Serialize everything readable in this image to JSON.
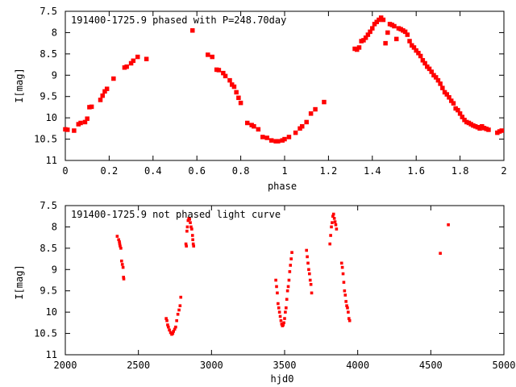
{
  "chart_data": [
    {
      "type": "scatter",
      "title": "191400-1725.9 phased with P=248.70day",
      "xlabel": "phase",
      "ylabel": "I[mag]",
      "xlim": [
        0,
        2
      ],
      "ylim": [
        7.5,
        11
      ],
      "y_inverted": true,
      "grid": false,
      "marker_color": "#ff0000",
      "x_ticks": [
        "0",
        "0.2",
        "0.4",
        "0.6",
        "0.8",
        "1",
        "1.2",
        "1.4",
        "1.6",
        "1.8",
        "2"
      ],
      "y_ticks": [
        "7.5",
        "8",
        "8.5",
        "9",
        "9.5",
        "10",
        "10.5",
        "11"
      ],
      "series": [
        {
          "points": [
            [
              0.0,
              10.27
            ],
            [
              0.01,
              10.28
            ],
            [
              0.04,
              10.3
            ],
            [
              0.06,
              10.15
            ],
            [
              0.07,
              10.12
            ],
            [
              0.09,
              10.1
            ],
            [
              0.1,
              10.02
            ],
            [
              0.11,
              9.75
            ],
            [
              0.12,
              9.74
            ],
            [
              0.16,
              9.58
            ],
            [
              0.17,
              9.48
            ],
            [
              0.18,
              9.38
            ],
            [
              0.19,
              9.32
            ],
            [
              0.22,
              9.08
            ],
            [
              0.27,
              8.82
            ],
            [
              0.28,
              8.8
            ],
            [
              0.3,
              8.72
            ],
            [
              0.31,
              8.66
            ],
            [
              0.33,
              8.57
            ],
            [
              0.37,
              8.62
            ],
            [
              0.58,
              7.95
            ],
            [
              0.65,
              8.52
            ],
            [
              0.67,
              8.57
            ],
            [
              0.69,
              8.87
            ],
            [
              0.7,
              8.88
            ],
            [
              0.72,
              8.95
            ],
            [
              0.73,
              9.02
            ],
            [
              0.75,
              9.12
            ],
            [
              0.76,
              9.22
            ],
            [
              0.77,
              9.27
            ],
            [
              0.78,
              9.4
            ],
            [
              0.79,
              9.53
            ],
            [
              0.8,
              9.65
            ],
            [
              0.83,
              10.12
            ],
            [
              0.85,
              10.17
            ],
            [
              0.86,
              10.2
            ],
            [
              0.88,
              10.27
            ],
            [
              0.9,
              10.45
            ],
            [
              0.92,
              10.47
            ],
            [
              0.94,
              10.53
            ],
            [
              0.96,
              10.55
            ],
            [
              0.97,
              10.55
            ],
            [
              0.99,
              10.53
            ],
            [
              1.0,
              10.5
            ],
            [
              1.02,
              10.45
            ],
            [
              1.05,
              10.35
            ],
            [
              1.07,
              10.25
            ],
            [
              1.08,
              10.2
            ],
            [
              1.1,
              10.1
            ],
            [
              1.12,
              9.9
            ],
            [
              1.14,
              9.8
            ],
            [
              1.18,
              9.63
            ],
            [
              1.32,
              8.38
            ],
            [
              1.33,
              8.4
            ],
            [
              1.34,
              8.35
            ],
            [
              1.35,
              8.2
            ],
            [
              1.36,
              8.18
            ],
            [
              1.37,
              8.12
            ],
            [
              1.38,
              8.05
            ],
            [
              1.39,
              7.98
            ],
            [
              1.4,
              7.9
            ],
            [
              1.41,
              7.8
            ],
            [
              1.42,
              7.75
            ],
            [
              1.43,
              7.7
            ],
            [
              1.44,
              7.65
            ],
            [
              1.45,
              7.7
            ],
            [
              1.46,
              8.25
            ],
            [
              1.47,
              8.0
            ],
            [
              1.48,
              7.8
            ],
            [
              1.49,
              7.82
            ],
            [
              1.5,
              7.85
            ],
            [
              1.51,
              8.15
            ],
            [
              1.52,
              7.9
            ],
            [
              1.53,
              7.92
            ],
            [
              1.54,
              7.95
            ],
            [
              1.55,
              7.98
            ],
            [
              1.56,
              8.05
            ],
            [
              1.57,
              8.2
            ],
            [
              1.58,
              8.3
            ],
            [
              1.59,
              8.35
            ],
            [
              1.6,
              8.42
            ],
            [
              1.61,
              8.48
            ],
            [
              1.62,
              8.55
            ],
            [
              1.63,
              8.65
            ],
            [
              1.64,
              8.72
            ],
            [
              1.65,
              8.8
            ],
            [
              1.66,
              8.85
            ],
            [
              1.67,
              8.92
            ],
            [
              1.68,
              9.0
            ],
            [
              1.69,
              9.05
            ],
            [
              1.7,
              9.12
            ],
            [
              1.71,
              9.2
            ],
            [
              1.72,
              9.3
            ],
            [
              1.73,
              9.4
            ],
            [
              1.74,
              9.45
            ],
            [
              1.75,
              9.52
            ],
            [
              1.76,
              9.6
            ],
            [
              1.77,
              9.66
            ],
            [
              1.78,
              9.78
            ],
            [
              1.79,
              9.82
            ],
            [
              1.8,
              9.9
            ],
            [
              1.81,
              9.98
            ],
            [
              1.82,
              10.05
            ],
            [
              1.83,
              10.1
            ],
            [
              1.84,
              10.12
            ],
            [
              1.85,
              10.15
            ],
            [
              1.86,
              10.18
            ],
            [
              1.87,
              10.2
            ],
            [
              1.88,
              10.22
            ],
            [
              1.89,
              10.25
            ],
            [
              1.9,
              10.2
            ],
            [
              1.91,
              10.24
            ],
            [
              1.92,
              10.26
            ],
            [
              1.93,
              10.28
            ],
            [
              1.97,
              10.35
            ],
            [
              1.98,
              10.32
            ],
            [
              1.99,
              10.3
            ]
          ]
        }
      ]
    },
    {
      "type": "scatter",
      "title": "191400-1725.9 not phased light curve",
      "xlabel": "hjd0",
      "ylabel": "I[mag]",
      "xlim": [
        2000,
        5000
      ],
      "ylim": [
        7.5,
        11
      ],
      "y_inverted": true,
      "grid": false,
      "marker_color": "#ff0000",
      "x_ticks": [
        "2000",
        "2500",
        "3000",
        "3500",
        "4000",
        "4500",
        "5000"
      ],
      "y_ticks": [
        "7.5",
        "8",
        "8.5",
        "9",
        "9.5",
        "10",
        "10.5",
        "11"
      ],
      "series": [
        {
          "points": [
            [
              2355,
              8.22
            ],
            [
              2365,
              8.3
            ],
            [
              2370,
              8.35
            ],
            [
              2372,
              8.4
            ],
            [
              2375,
              8.45
            ],
            [
              2380,
              8.5
            ],
            [
              2385,
              8.8
            ],
            [
              2390,
              8.88
            ],
            [
              2395,
              8.95
            ],
            [
              2398,
              9.18
            ],
            [
              2400,
              9.22
            ],
            [
              2690,
              10.15
            ],
            [
              2695,
              10.2
            ],
            [
              2700,
              10.3
            ],
            [
              2705,
              10.35
            ],
            [
              2712,
              10.42
            ],
            [
              2720,
              10.48
            ],
            [
              2728,
              10.52
            ],
            [
              2735,
              10.5
            ],
            [
              2740,
              10.45
            ],
            [
              2748,
              10.4
            ],
            [
              2755,
              10.35
            ],
            [
              2762,
              10.2
            ],
            [
              2770,
              10.05
            ],
            [
              2778,
              9.95
            ],
            [
              2785,
              9.85
            ],
            [
              2790,
              9.65
            ],
            [
              2825,
              8.4
            ],
            [
              2828,
              8.45
            ],
            [
              2832,
              8.1
            ],
            [
              2835,
              8.0
            ],
            [
              2840,
              7.85
            ],
            [
              2845,
              7.8
            ],
            [
              2850,
              7.82
            ],
            [
              2855,
              7.9
            ],
            [
              2860,
              8.0
            ],
            [
              2865,
              8.05
            ],
            [
              2870,
              8.2
            ],
            [
              2872,
              8.3
            ],
            [
              2875,
              8.4
            ],
            [
              2878,
              8.45
            ],
            [
              3440,
              9.25
            ],
            [
              3445,
              9.4
            ],
            [
              3450,
              9.55
            ],
            [
              3455,
              9.8
            ],
            [
              3460,
              9.9
            ],
            [
              3465,
              10.0
            ],
            [
              3470,
              10.1
            ],
            [
              3475,
              10.2
            ],
            [
              3480,
              10.28
            ],
            [
              3485,
              10.32
            ],
            [
              3490,
              10.3
            ],
            [
              3495,
              10.25
            ],
            [
              3500,
              10.15
            ],
            [
              3505,
              10.0
            ],
            [
              3510,
              9.9
            ],
            [
              3515,
              9.7
            ],
            [
              3520,
              9.5
            ],
            [
              3525,
              9.4
            ],
            [
              3530,
              9.25
            ],
            [
              3535,
              9.05
            ],
            [
              3540,
              8.9
            ],
            [
              3545,
              8.75
            ],
            [
              3550,
              8.6
            ],
            [
              3650,
              8.55
            ],
            [
              3655,
              8.7
            ],
            [
              3660,
              8.85
            ],
            [
              3665,
              9.0
            ],
            [
              3670,
              9.1
            ],
            [
              3675,
              9.25
            ],
            [
              3680,
              9.35
            ],
            [
              3685,
              9.55
            ],
            [
              3810,
              8.4
            ],
            [
              3815,
              8.2
            ],
            [
              3820,
              8.0
            ],
            [
              3825,
              7.9
            ],
            [
              3830,
              7.75
            ],
            [
              3835,
              7.7
            ],
            [
              3840,
              7.8
            ],
            [
              3845,
              7.88
            ],
            [
              3850,
              7.95
            ],
            [
              3855,
              8.05
            ],
            [
              3890,
              8.85
            ],
            [
              3895,
              8.95
            ],
            [
              3900,
              9.1
            ],
            [
              3905,
              9.3
            ],
            [
              3910,
              9.5
            ],
            [
              3915,
              9.6
            ],
            [
              3920,
              9.75
            ],
            [
              3925,
              9.85
            ],
            [
              3930,
              9.9
            ],
            [
              3935,
              10.0
            ],
            [
              3940,
              10.15
            ],
            [
              3945,
              10.2
            ],
            [
              4565,
              8.62
            ],
            [
              4620,
              7.95
            ]
          ]
        }
      ]
    }
  ]
}
